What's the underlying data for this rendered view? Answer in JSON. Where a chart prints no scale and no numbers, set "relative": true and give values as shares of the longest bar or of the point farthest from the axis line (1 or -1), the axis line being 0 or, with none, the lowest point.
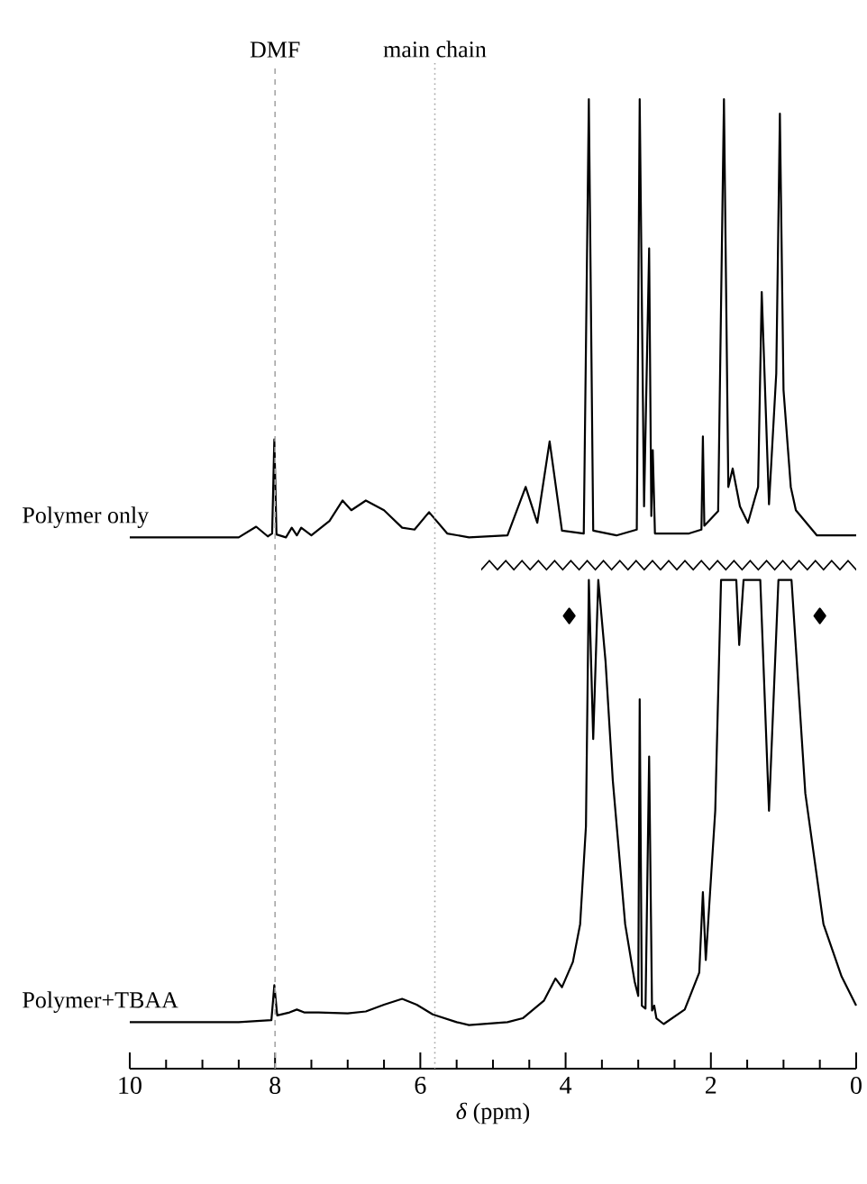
{
  "chart_data": {
    "type": "line",
    "relative": true,
    "xlabel": "*δ* (ppm)",
    "xlim": [
      10,
      0
    ],
    "xticks": [
      10,
      {
        "value": 9.5,
        "label": null
      },
      {
        "value": 9,
        "label": null
      },
      {
        "value": 8.5,
        "label": null
      },
      8,
      {
        "value": 7.5,
        "label": null
      },
      {
        "value": 7,
        "label": null
      },
      {
        "value": 6.5,
        "label": null
      },
      6,
      {
        "value": 5.5,
        "label": null
      },
      {
        "value": 5,
        "label": null
      },
      {
        "value": 4.5,
        "label": null
      },
      4,
      {
        "value": 3.5,
        "label": null
      },
      {
        "value": 3,
        "label": null
      },
      {
        "value": 2.5,
        "label": null
      },
      2,
      {
        "value": 1.5,
        "label": null
      },
      {
        "value": 1,
        "label": null
      },
      {
        "value": 0.5,
        "label": null
      },
      0
    ],
    "series": [
      {
        "name": "Polymer only",
        "color": "#000000",
        "x": [
          10,
          8.5,
          8.26,
          8.1,
          8.04,
          8.01,
          7.98,
          7.85,
          7.77,
          7.7,
          7.64,
          7.5,
          7.25,
          7.07,
          6.95,
          6.75,
          6.5,
          6.25,
          6.08,
          5.88,
          5.63,
          5.33,
          4.8,
          4.55,
          4.39,
          4.22,
          4.05,
          3.75,
          3.68,
          3.62,
          3.3,
          3.02,
          2.98,
          2.92,
          2.85,
          2.82,
          2.8,
          2.77,
          2.3,
          2.13,
          2.11,
          2.09,
          1.9,
          1.82,
          1.76,
          1.7,
          1.6,
          1.49,
          1.35,
          1.3,
          1.2,
          1.1,
          1.05,
          1.0,
          0.9,
          0.83,
          0.54,
          0
        ],
        "values": [
          0.548,
          0.548,
          0.559,
          0.549,
          0.552,
          0.649,
          0.551,
          0.548,
          0.558,
          0.55,
          0.558,
          0.55,
          0.565,
          0.586,
          0.576,
          0.586,
          0.576,
          0.558,
          0.556,
          0.574,
          0.552,
          0.548,
          0.55,
          0.6,
          0.563,
          0.647,
          0.555,
          0.552,
          1.0,
          0.555,
          0.55,
          0.556,
          1.0,
          0.58,
          0.846,
          0.57,
          0.638,
          0.552,
          0.552,
          0.556,
          0.652,
          0.56,
          0.575,
          1.0,
          0.6,
          0.619,
          0.58,
          0.563,
          0.6,
          0.801,
          0.582,
          0.717,
          0.985,
          0.7,
          0.6,
          0.576,
          0.55,
          0.55
        ]
      },
      {
        "name": "Polymer+TBAA",
        "color": "#000000",
        "x": [
          10,
          8.5,
          8.05,
          8.01,
          7.97,
          7.8,
          7.7,
          7.6,
          7.4,
          7.0,
          6.75,
          6.5,
          6.25,
          6.05,
          5.83,
          5.5,
          5.33,
          4.8,
          4.59,
          4.3,
          4.14,
          4.05,
          3.9,
          3.8,
          3.72,
          3.68,
          3.62,
          3.55,
          3.45,
          3.35,
          3.18,
          3.05,
          3.0,
          2.98,
          2.95,
          2.9,
          2.85,
          2.81,
          2.78,
          2.75,
          2.65,
          2.36,
          2.16,
          2.11,
          2.07,
          1.94,
          1.86,
          1.65,
          1.61,
          1.55,
          1.32,
          1.2,
          1.07,
          0.89,
          0.7,
          0.45,
          0.2,
          0
        ],
        "values": [
          0.048,
          0.048,
          0.05,
          0.086,
          0.055,
          0.058,
          0.061,
          0.058,
          0.058,
          0.057,
          0.059,
          0.066,
          0.072,
          0.066,
          0.056,
          0.048,
          0.045,
          0.048,
          0.052,
          0.07,
          0.093,
          0.084,
          0.11,
          0.149,
          0.25,
          0.504,
          0.34,
          0.504,
          0.42,
          0.297,
          0.149,
          0.09,
          0.075,
          0.381,
          0.065,
          0.062,
          0.322,
          0.06,
          0.065,
          0.052,
          0.046,
          0.061,
          0.099,
          0.182,
          0.112,
          0.266,
          0.504,
          0.504,
          0.437,
          0.504,
          0.504,
          0.266,
          0.504,
          0.504,
          0.284,
          0.149,
          0.095,
          0.065
        ]
      },
      {
        "type": "scatter",
        "color": "#000000",
        "marker": "diamond",
        "x": [
          3.95,
          0.5
        ],
        "values": [
          0.467,
          0.467
        ]
      }
    ],
    "ref_lines": [
      {
        "axis": "x",
        "value": 8,
        "label": "DMF",
        "line_style": "dashed",
        "color": "#a6a6a6"
      },
      {
        "axis": "x",
        "value": 5.8,
        "label": "main chain",
        "line_style": "dotted",
        "color": "#a6a6a6"
      }
    ]
  }
}
